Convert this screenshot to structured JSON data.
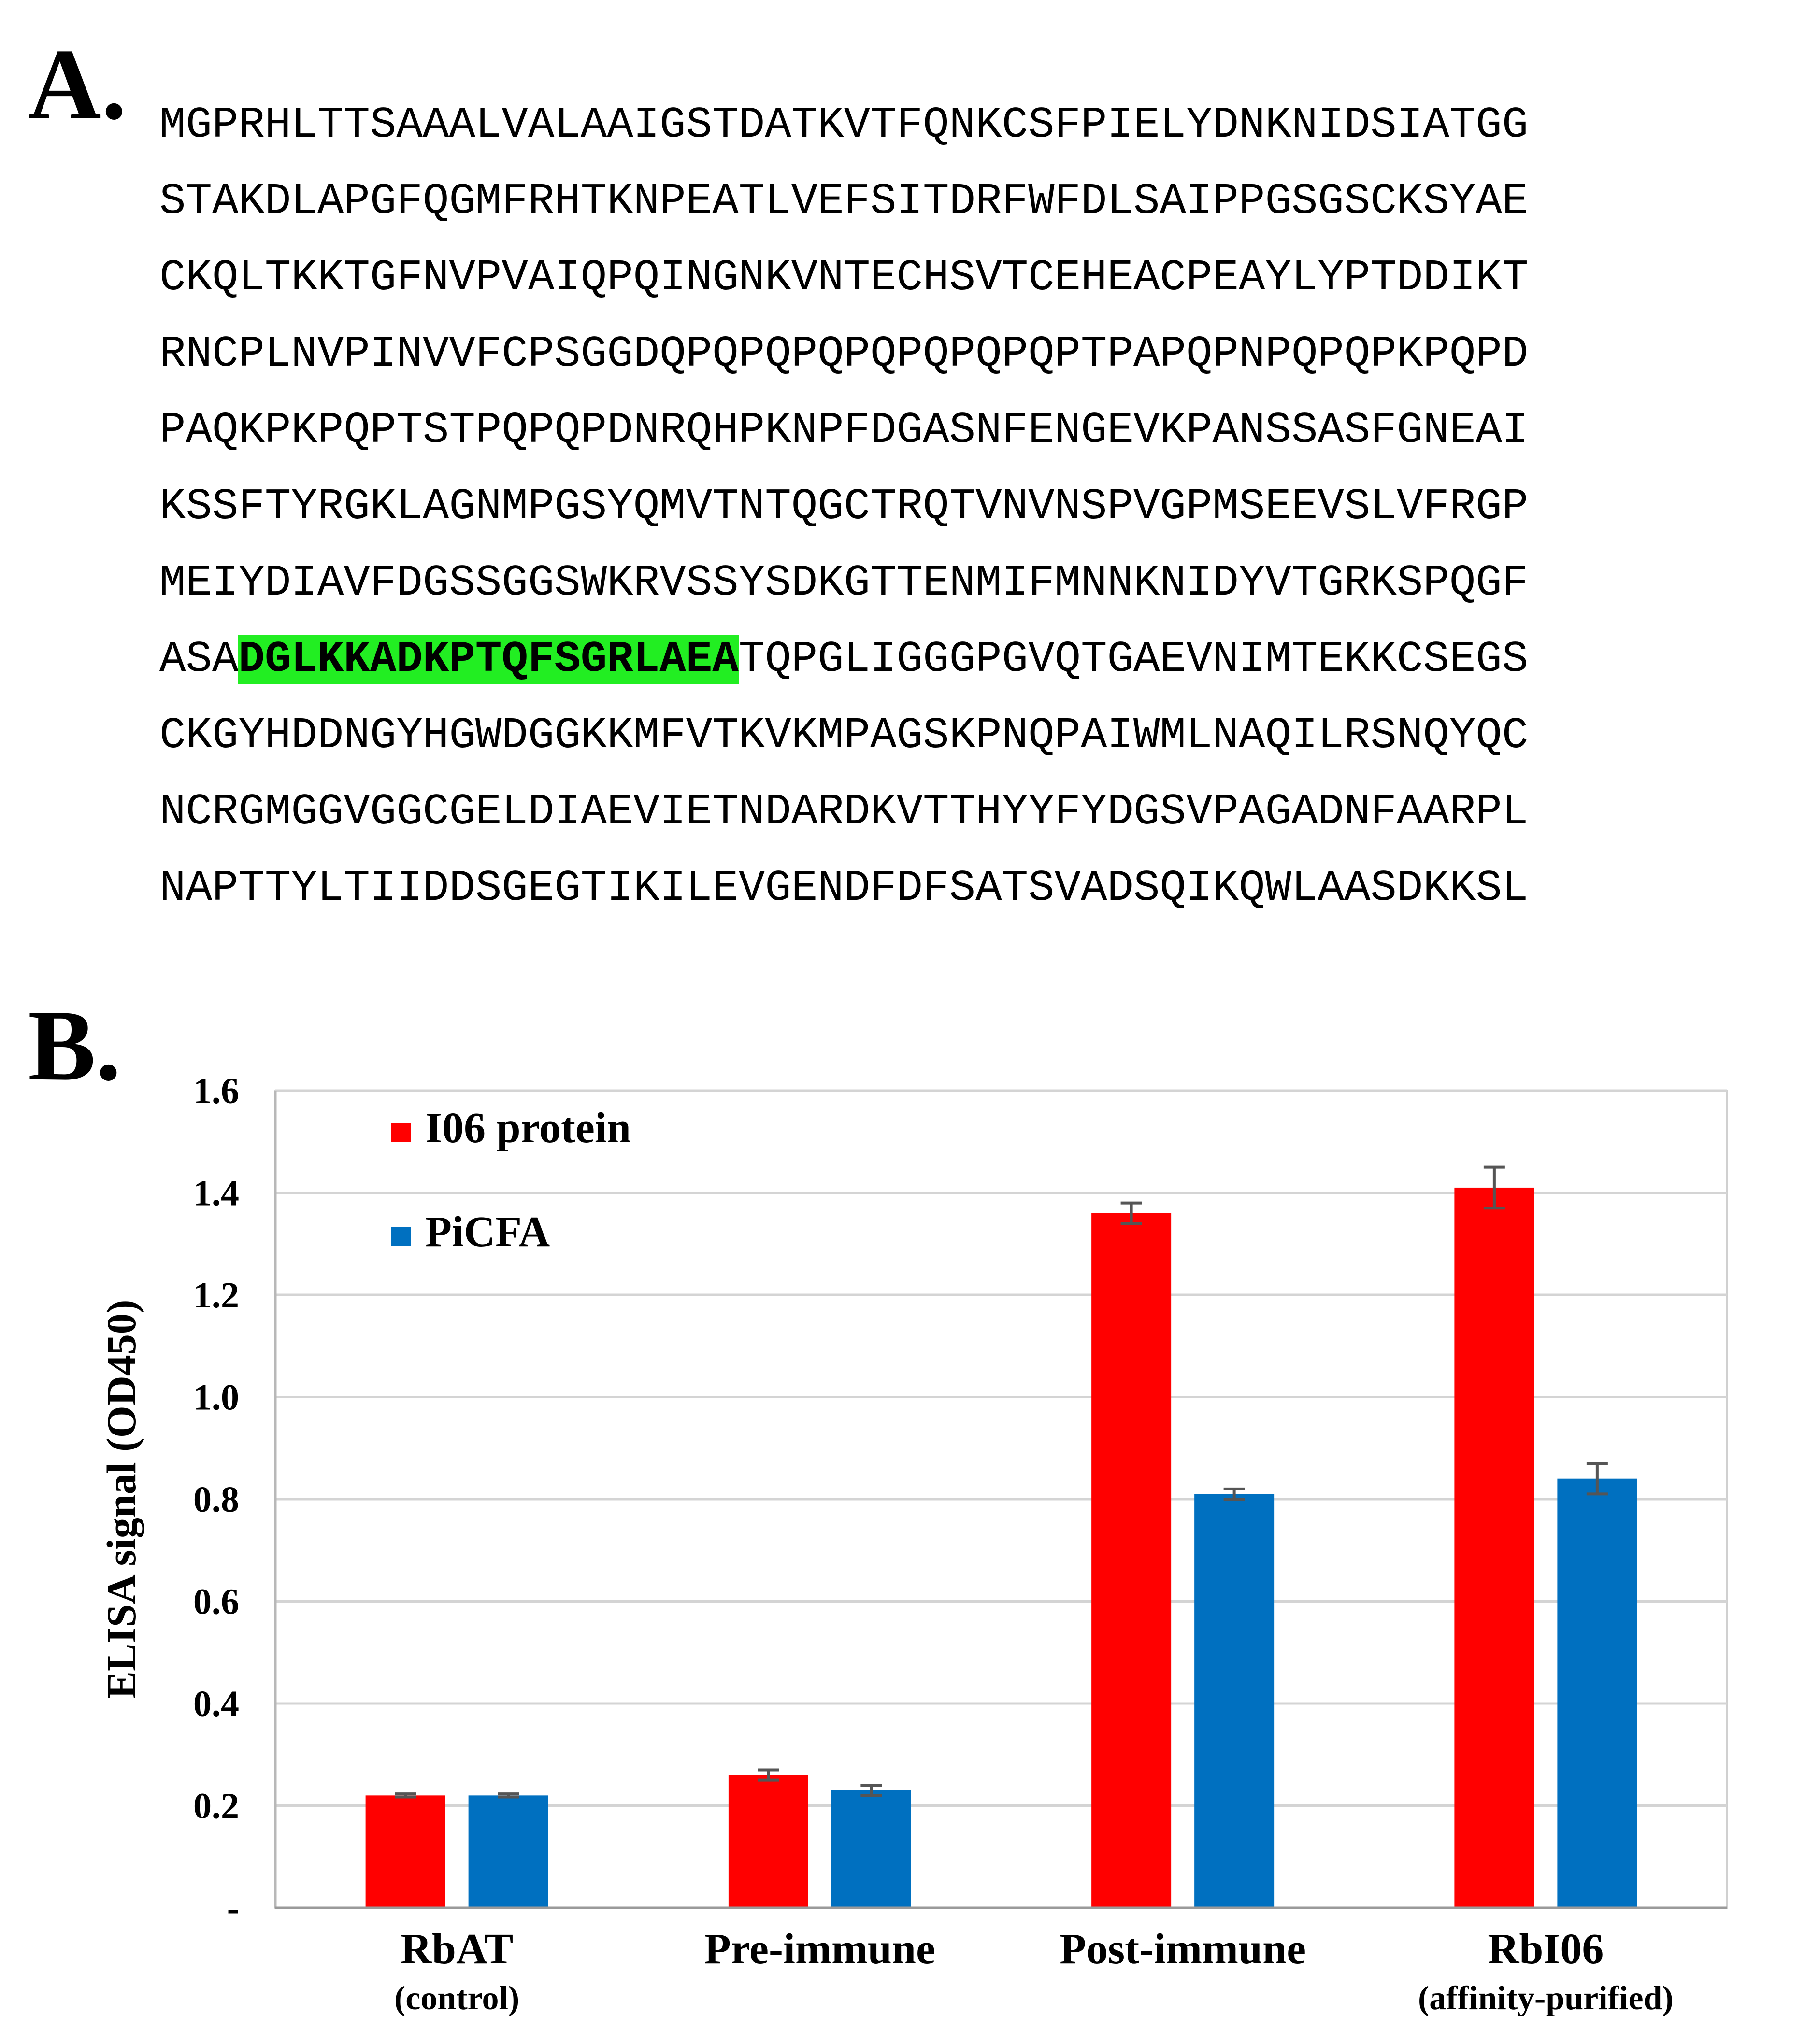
{
  "panel_a": {
    "label": "A.",
    "sequence_lines": [
      {
        "pre": "MGPRHLTTSAAALVALAAIGSTDATKVTFQNKCSFPIELYDNKNIDSIATGG",
        "hl": "",
        "post": ""
      },
      {
        "pre": "STAKDLAPGFQGMFRHTKNPEATLVEFSITDRFWFDLSAIPPGSGSCKSYAE",
        "hl": "",
        "post": ""
      },
      {
        "pre": "CKQLTKKTGFNVPVAIQPQINGNKVNTECHSVTCEHEACPEAYLYPTDDIKT",
        "hl": "",
        "post": ""
      },
      {
        "pre": "RNCPLNVPINVVFCPSGGDQPQPQPQPQPQPQPQPTPAPQPNPQPQPKPQPD",
        "hl": "",
        "post": ""
      },
      {
        "pre": "PAQKPKPQPTSTPQPQPDNRQHPKNPFDGASNFENGEVKPANSSASFGNEAI",
        "hl": "",
        "post": ""
      },
      {
        "pre": "KSSFTYRGKLAGNMPGSYQMVTNTQGCTRQTVNVNSPVGPMSEEVSLVFRGP",
        "hl": "",
        "post": ""
      },
      {
        "pre": "MEIYDIAVFDGSSGGSWKRVSSYSDKGTTENMIFMNNKNIDYVTGRKSPQGF",
        "hl": "",
        "post": ""
      },
      {
        "pre": "ASA",
        "hl": "DGLKKADKPTQFSGRLAEA",
        "post": "TQPGLIGGGPGVQTGAEVNIMTEKKCSEGS"
      },
      {
        "pre": "CKGYHDDNGYHGWDGGKKMFVTKVKMPAGSKPNQPAIWMLNAQILRSNQYQC",
        "hl": "",
        "post": ""
      },
      {
        "pre": "NCRGMGGVGGCGELDIAEVIETNDARDKVTTHYYFYDGSVPAGADNFAARPL",
        "hl": "",
        "post": ""
      },
      {
        "pre": "NAPTTYLTIIDDSGEGTIKILEVGENDFDFSATSVADSQIKQWLAASDKKSL",
        "hl": "",
        "post": ""
      }
    ],
    "highlight_color": "#22ee22"
  },
  "panel_b": {
    "label": "B."
  },
  "chart_data": {
    "type": "bar",
    "title": "",
    "xlabel": "",
    "ylabel": "ELISA signal (OD450)",
    "ylim": [
      0,
      1.6
    ],
    "yticks": [
      0,
      0.2,
      0.4,
      0.6,
      0.8,
      1.0,
      1.2,
      1.4,
      1.6
    ],
    "ytick_labels": [
      "-",
      "0.2",
      "0.4",
      "0.6",
      "0.8",
      "1.0",
      "1.2",
      "1.4",
      "1.6"
    ],
    "grid": true,
    "legend_position": "top-left",
    "categories": [
      "RbAT",
      "Pre-immune",
      "Post-immune",
      "RbI06"
    ],
    "category_sublabels": [
      "(control)",
      "",
      "",
      "(affinity-purified)"
    ],
    "series": [
      {
        "name": "I06 protein",
        "color": "#ff0000",
        "values": [
          0.22,
          0.26,
          1.36,
          1.41
        ],
        "errors": [
          0.003,
          0.01,
          0.02,
          0.04
        ]
      },
      {
        "name": "PiCFA",
        "color": "#0070c0",
        "values": [
          0.22,
          0.23,
          0.81,
          0.84
        ],
        "errors": [
          0.003,
          0.01,
          0.01,
          0.03
        ]
      }
    ]
  }
}
